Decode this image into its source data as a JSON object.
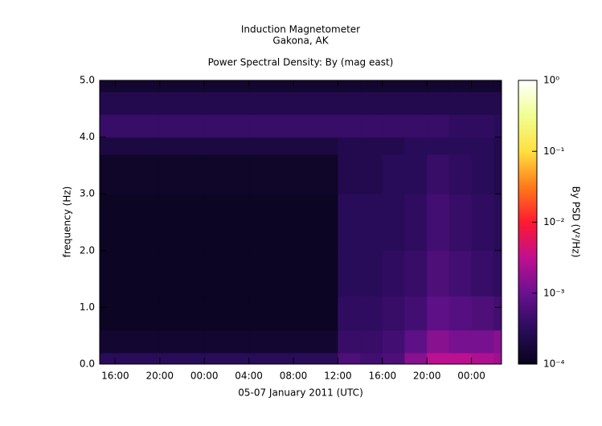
{
  "chart_data": {
    "type": "heatmap",
    "title": [
      "Induction Magnetometer",
      "Gakona, AK"
    ],
    "subtitle": "Power Spectral Density: By (mag east)",
    "xlabel": "05-07 January 2011 (UTC)",
    "ylabel": "frequency (Hz)",
    "xlim": [
      14.6,
      50.7
    ],
    "ylim": [
      0,
      5
    ],
    "xticks": [
      {
        "value": 16,
        "label": "16:00"
      },
      {
        "value": 20,
        "label": "20:00"
      },
      {
        "value": 24,
        "label": "00:00"
      },
      {
        "value": 28,
        "label": "04:00"
      },
      {
        "value": 32,
        "label": "08:00"
      },
      {
        "value": 36,
        "label": "12:00"
      },
      {
        "value": 40,
        "label": "16:00"
      },
      {
        "value": 44,
        "label": "20:00"
      },
      {
        "value": 48,
        "label": "00:00"
      }
    ],
    "yticks": [
      {
        "value": 0,
        "label": "0.0"
      },
      {
        "value": 1,
        "label": "1.0"
      },
      {
        "value": 2,
        "label": "2.0"
      },
      {
        "value": 3,
        "label": "3.0"
      },
      {
        "value": 4,
        "label": "4.0"
      },
      {
        "value": 5,
        "label": "5.0"
      }
    ],
    "x_edges": [
      14.6,
      20,
      24,
      28,
      32,
      36,
      38,
      40,
      42,
      44,
      46,
      48,
      50,
      50.7
    ],
    "y_edges": [
      0,
      0.2,
      0.6,
      1.2,
      2,
      3,
      3.7,
      4.0,
      4.4,
      4.8,
      5
    ],
    "z": [
      [
        0.0003,
        0.0003,
        0.0003,
        0.0003,
        0.0003,
        0.0006,
        0.0005,
        0.0006,
        0.0015,
        0.003,
        0.003,
        0.0025,
        0.002
      ],
      [
        0.00015,
        0.00015,
        0.00015,
        0.00015,
        0.00015,
        0.0004,
        0.0004,
        0.0005,
        0.0008,
        0.0015,
        0.0012,
        0.0012,
        0.0015
      ],
      [
        0.00012,
        0.00012,
        0.00012,
        0.00012,
        0.00012,
        0.00035,
        0.00035,
        0.0004,
        0.0005,
        0.0008,
        0.0007,
        0.0006,
        0.0005
      ],
      [
        0.00012,
        0.00012,
        0.00012,
        0.00012,
        0.00012,
        0.0003,
        0.0003,
        0.00035,
        0.0004,
        0.0006,
        0.0005,
        0.0004,
        0.00035
      ],
      [
        0.00012,
        0.00012,
        0.00012,
        0.00012,
        0.00012,
        0.0003,
        0.0003,
        0.0003,
        0.00035,
        0.0005,
        0.0004,
        0.00035,
        0.0003
      ],
      [
        0.00013,
        0.00013,
        0.00013,
        0.00013,
        0.00013,
        0.00025,
        0.00025,
        0.0003,
        0.0003,
        0.0004,
        0.00035,
        0.0003,
        0.00025
      ],
      [
        0.0002,
        0.0002,
        0.0002,
        0.0002,
        0.0002,
        0.00025,
        0.00025,
        0.00025,
        0.0003,
        0.0003,
        0.0003,
        0.0003,
        0.00025
      ],
      [
        0.0004,
        0.0004,
        0.0004,
        0.0004,
        0.0004,
        0.0004,
        0.0004,
        0.0004,
        0.0004,
        0.0004,
        0.00035,
        0.00035,
        0.0003
      ],
      [
        0.00025,
        0.00025,
        0.00025,
        0.00025,
        0.00025,
        0.00025,
        0.00025,
        0.00025,
        0.00025,
        0.00025,
        0.00025,
        0.00025,
        0.00025
      ],
      [
        0.00015,
        0.00015,
        0.00015,
        0.00015,
        0.00015,
        0.00015,
        0.00015,
        0.00015,
        0.00015,
        0.00015,
        0.00015,
        0.00015,
        0.00015
      ]
    ],
    "colormap": [
      "#07041a",
      "#2a0c5c",
      "#6a1190",
      "#c01090",
      "#ff1a30",
      "#ff7a1a",
      "#ffe040",
      "#f0ff90",
      "#ffffff"
    ],
    "colorbar": {
      "label": "By PSD (V²/Hz)",
      "log": true,
      "lim": [
        0.0001,
        1
      ],
      "ticks": [
        {
          "value": 0.0001,
          "label": "10⁻⁴"
        },
        {
          "value": 0.001,
          "label": "10⁻³"
        },
        {
          "value": 0.01,
          "label": "10⁻²"
        },
        {
          "value": 0.1,
          "label": "10⁻¹"
        },
        {
          "value": 1,
          "label": "10⁰"
        }
      ]
    }
  }
}
